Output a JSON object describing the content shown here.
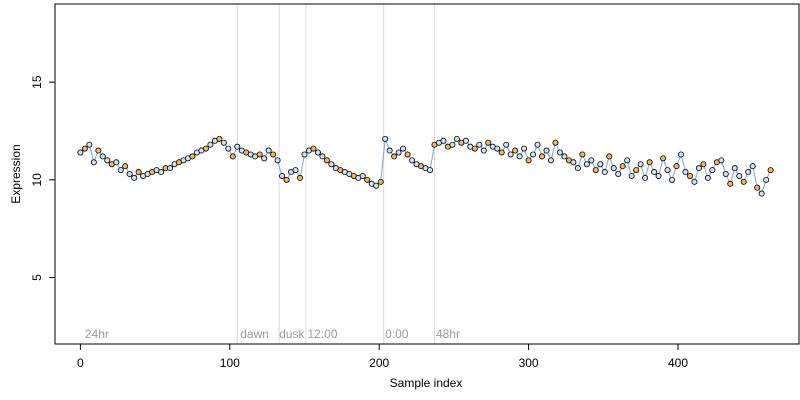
{
  "chart_data": {
    "type": "scatter",
    "title": "",
    "xlabel": "Sample index",
    "ylabel": "Expression",
    "xlim": [
      -17,
      481
    ],
    "ylim": [
      1.6,
      19.0
    ],
    "xticks": [
      0,
      100,
      200,
      300,
      400
    ],
    "yticks": [
      5,
      10,
      15
    ],
    "grid": false,
    "legend": "none",
    "colors": {
      "point_default": "#cfe0f3",
      "point_orange": "#f5b65e",
      "line": "#7fa6d6",
      "separator": "#d9d9d9",
      "region_label": "#9a9a9a"
    },
    "separators": [
      105,
      133,
      151,
      203,
      237
    ],
    "region_labels": [
      {
        "x": 3,
        "label": "24hr"
      },
      {
        "x": 107,
        "label": "dawn"
      },
      {
        "x": 133,
        "label": "dusk"
      },
      {
        "x": 152,
        "label": "12:00"
      },
      {
        "x": 204,
        "label": "0:00"
      },
      {
        "x": 238,
        "label": "48hr"
      }
    ],
    "series": [
      {
        "x": [
          0,
          3,
          6,
          9,
          12,
          15,
          18,
          21,
          24,
          27,
          30,
          33,
          36,
          39,
          42,
          45,
          48,
          51,
          54,
          57,
          60,
          63,
          66,
          69,
          72,
          75,
          78,
          81,
          84,
          87,
          90,
          93,
          96,
          99,
          102,
          105,
          108,
          111,
          114,
          117,
          120,
          123,
          126,
          129,
          132,
          135,
          138,
          141,
          144,
          147,
          150,
          153,
          156,
          159,
          162,
          165,
          168,
          171,
          174,
          177,
          180,
          183,
          186,
          189,
          192,
          195,
          198,
          201,
          204,
          207,
          210,
          213,
          216,
          219,
          222,
          225,
          228,
          231,
          234,
          237,
          240,
          243,
          246,
          249,
          252,
          255,
          258,
          261,
          264,
          267,
          270,
          273,
          276,
          279,
          282,
          285,
          288,
          291,
          294,
          297,
          300,
          303,
          306,
          309,
          312,
          315,
          318,
          321,
          324,
          327,
          330,
          333,
          336,
          339,
          342,
          345,
          348,
          351,
          354,
          357,
          360,
          363,
          366,
          369,
          372,
          375,
          378,
          381,
          384,
          387,
          390,
          393,
          396,
          399,
          402,
          405,
          408,
          411,
          414,
          417,
          420,
          423,
          426,
          429,
          432,
          435,
          438,
          441,
          444,
          447,
          450,
          453,
          456,
          459,
          462
        ],
        "y": [
          11.4,
          11.6,
          11.8,
          10.9,
          11.5,
          11.2,
          11.0,
          10.8,
          10.9,
          10.5,
          10.7,
          10.3,
          10.1,
          10.4,
          10.2,
          10.3,
          10.4,
          10.5,
          10.4,
          10.6,
          10.6,
          10.8,
          10.9,
          11.0,
          11.1,
          11.2,
          11.4,
          11.5,
          11.6,
          11.8,
          12.0,
          12.1,
          11.9,
          11.6,
          11.2,
          11.7,
          11.5,
          11.4,
          11.3,
          11.2,
          11.3,
          11.1,
          11.5,
          11.3,
          11.0,
          10.2,
          10.0,
          10.4,
          10.5,
          10.1,
          11.3,
          11.5,
          11.6,
          11.4,
          11.2,
          11.0,
          10.8,
          10.6,
          10.5,
          10.4,
          10.3,
          10.2,
          10.1,
          10.2,
          10.0,
          9.8,
          9.7,
          9.9,
          12.1,
          11.5,
          11.2,
          11.4,
          11.6,
          11.3,
          11.0,
          10.8,
          10.7,
          10.6,
          10.5,
          11.8,
          11.9,
          12.0,
          11.7,
          11.8,
          12.1,
          11.9,
          12.0,
          11.7,
          11.6,
          11.8,
          11.5,
          11.9,
          11.7,
          11.6,
          11.4,
          11.8,
          11.3,
          11.5,
          11.2,
          11.6,
          11.0,
          11.3,
          11.8,
          11.2,
          11.5,
          11.0,
          11.9,
          11.4,
          11.2,
          11.0,
          10.9,
          10.6,
          11.3,
          10.8,
          11.0,
          10.5,
          10.8,
          10.4,
          11.2,
          10.6,
          10.3,
          10.7,
          11.0,
          10.2,
          10.5,
          10.8,
          10.1,
          10.9,
          10.4,
          10.2,
          11.1,
          10.5,
          10.0,
          10.7,
          11.3,
          10.4,
          10.2,
          9.9,
          10.6,
          10.8,
          10.1,
          10.5,
          10.9,
          11.0,
          10.3,
          9.8,
          10.6,
          10.2,
          9.9,
          10.4,
          10.7,
          9.6,
          9.3,
          10.0,
          10.5
        ]
      }
    ]
  }
}
